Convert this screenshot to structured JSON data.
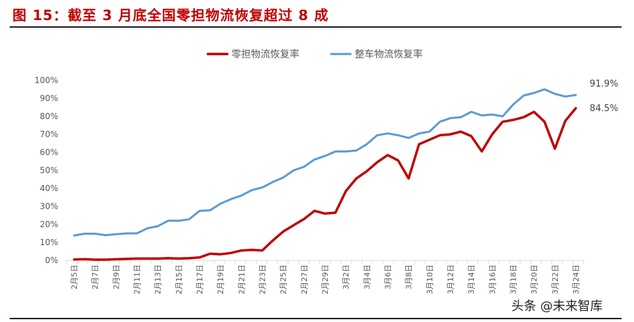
{
  "figure": {
    "title": "图 15：截至 3 月底全国零担物流恢复超过 8 成",
    "watermark": "头条 @未来智库"
  },
  "chart_data": {
    "type": "line",
    "ylim": [
      0,
      100
    ],
    "yticks": [
      "0%",
      "10%",
      "20%",
      "30%",
      "40%",
      "50%",
      "60%",
      "70%",
      "80%",
      "90%",
      "100%"
    ],
    "x_tick_labels": [
      "2月5日",
      "2月7日",
      "2月9日",
      "2月11日",
      "2月13日",
      "2月15日",
      "2月17日",
      "2月19日",
      "2月21日",
      "2月23日",
      "2月25日",
      "2月27日",
      "2月29日",
      "3月2日",
      "3月4日",
      "3月6日",
      "3月8日",
      "3月10日",
      "3月12日",
      "3月14日",
      "3月16日",
      "3月18日",
      "3月20日",
      "3月22日",
      "3月24日"
    ],
    "legend_position": "top",
    "grid": false,
    "series": [
      {
        "name": "零担物流恢复率",
        "color": "#c00000",
        "end_label": "84.5%",
        "values": [
          0.5,
          0.7,
          0.4,
          0.4,
          0.6,
          0.8,
          1.0,
          1.0,
          1.0,
          1.2,
          1.0,
          1.2,
          1.6,
          3.7,
          3.4,
          4.1,
          5.5,
          5.8,
          5.5,
          11.0,
          16.0,
          19.5,
          23.0,
          27.5,
          26.0,
          26.5,
          38.5,
          45.5,
          49.5,
          54.5,
          58.5,
          55.5,
          45.5,
          64.5,
          67.0,
          69.5,
          70.0,
          71.5,
          69.0,
          60.5,
          70.0,
          77.0,
          78.0,
          79.5,
          82.5,
          77.0,
          62.0,
          77.5,
          84.5
        ]
      },
      {
        "name": "整车物流恢复率",
        "color": "#5b9bd5",
        "end_label": "91.9%",
        "values": [
          13.8,
          14.8,
          14.8,
          14.0,
          14.5,
          15.0,
          15.0,
          17.8,
          19.0,
          22.0,
          22.0,
          22.8,
          27.5,
          27.8,
          31.5,
          34.0,
          36.0,
          39.0,
          40.5,
          43.5,
          46.0,
          50.0,
          52.0,
          56.0,
          58.0,
          60.5,
          60.5,
          61.0,
          64.5,
          69.5,
          70.5,
          69.5,
          68.0,
          70.5,
          71.5,
          77.0,
          79.0,
          79.5,
          82.5,
          80.5,
          81.0,
          80.0,
          86.5,
          91.5,
          93.0,
          95.0,
          92.5,
          91.0,
          91.9
        ]
      }
    ]
  }
}
